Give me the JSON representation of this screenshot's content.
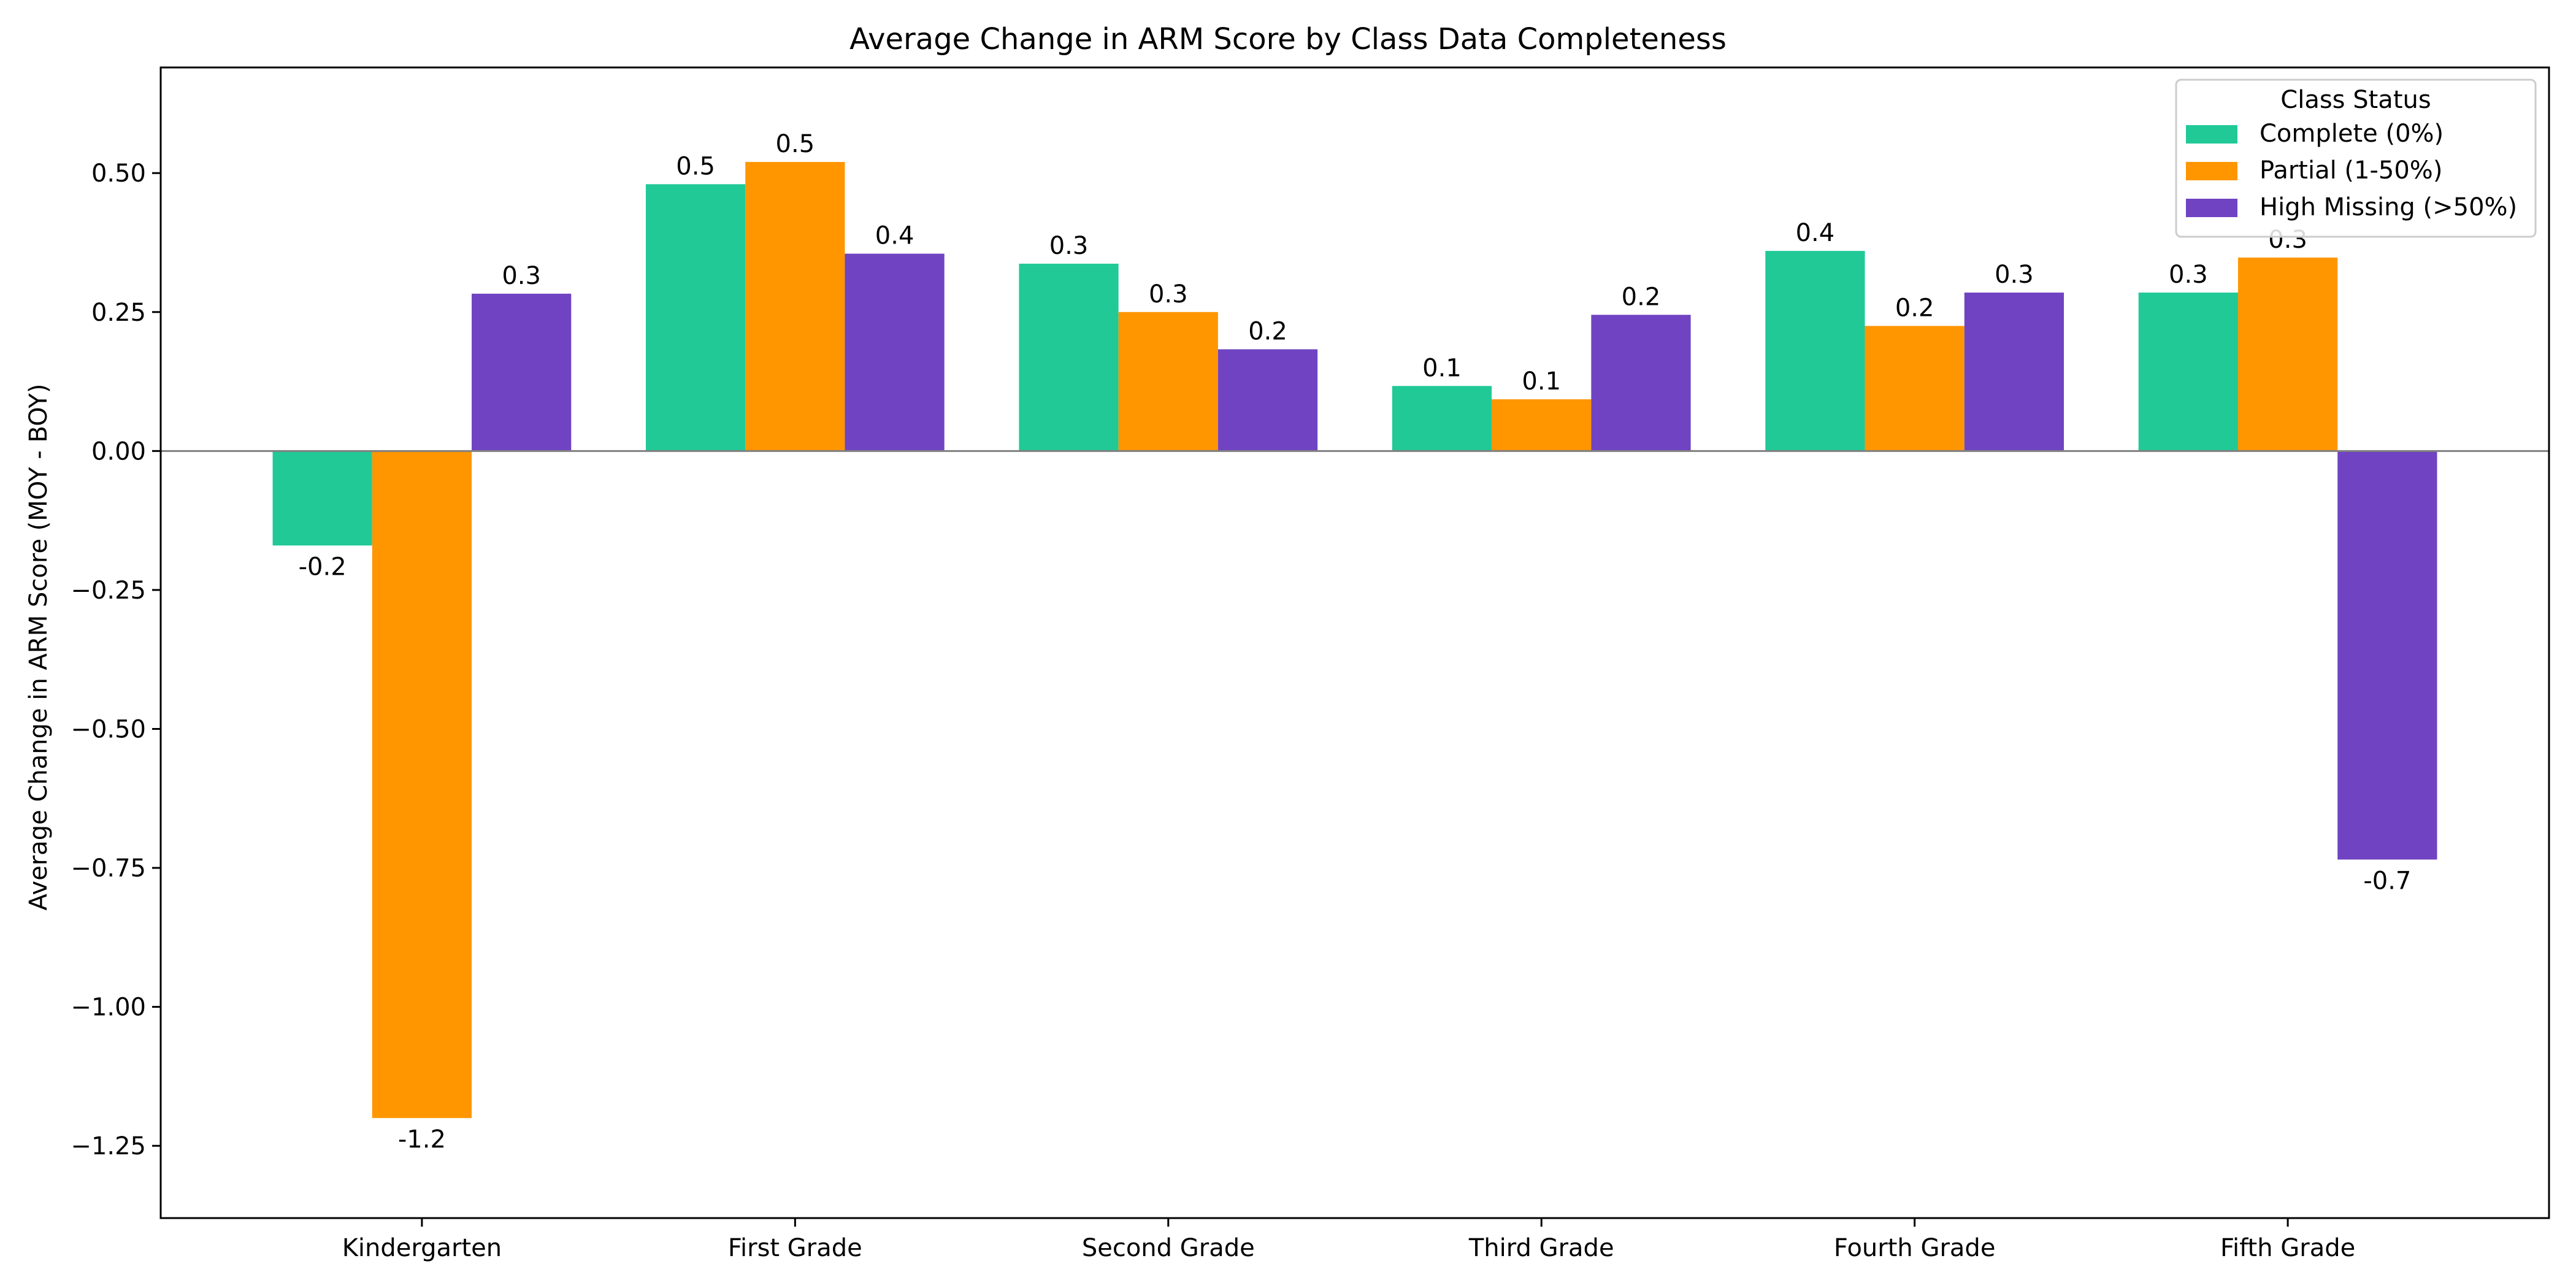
{
  "chart_data": {
    "type": "bar",
    "title": "Average Change in ARM Score by Class Data Completeness",
    "xlabel": "",
    "ylabel": "Average Change in ARM Score (MOY - BOY)",
    "categories": [
      "Kindergarten",
      "First Grade",
      "Second Grade",
      "Third Grade",
      "Fourth Grade",
      "Fifth Grade"
    ],
    "series": [
      {
        "name": "Complete (0%)",
        "color": "#21c997",
        "values": [
          -0.17,
          0.48,
          0.337,
          0.117,
          0.36,
          0.285
        ],
        "labels": [
          "-0.2",
          "0.5",
          "0.3",
          "0.1",
          "0.4",
          "0.3"
        ]
      },
      {
        "name": "Partial (1-50%)",
        "color": "#ff9600",
        "values": [
          -1.2,
          0.52,
          0.25,
          0.093,
          0.225,
          0.348
        ],
        "labels": [
          "-1.2",
          "0.5",
          "0.3",
          "0.1",
          "0.2",
          "0.3"
        ]
      },
      {
        "name": "High Missing (>50%)",
        "color": "#7043c2",
        "values": [
          0.283,
          0.355,
          0.183,
          0.245,
          0.285,
          -0.735
        ],
        "labels": [
          "0.3",
          "0.4",
          "0.2",
          "0.2",
          "0.3",
          "-0.7"
        ]
      }
    ],
    "ylim": [
      -1.38,
      0.69
    ],
    "yticks": [
      0.5,
      0.25,
      0.0,
      -0.25,
      -0.5,
      -0.75,
      -1.0,
      -1.25
    ],
    "ytick_labels": [
      "0.50",
      "0.25",
      "0.00",
      "−0.25",
      "−0.50",
      "−0.75",
      "−1.00",
      "−1.25"
    ],
    "grid": false,
    "zero_line": true,
    "legend": {
      "title": "Class Status",
      "placement": "top-right"
    }
  }
}
